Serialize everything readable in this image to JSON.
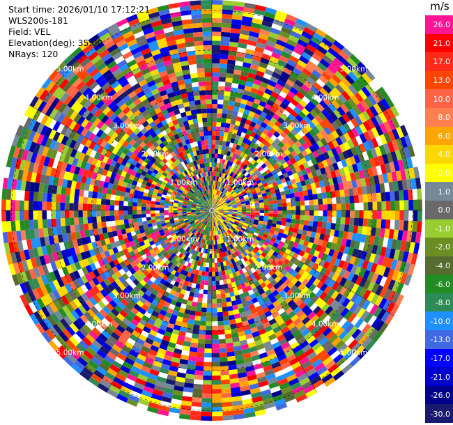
{
  "info": {
    "start_time": "Start time: 2026/01/10 17:12:21",
    "instrument": "WLS200s-181",
    "field": "Field: VEL",
    "elevation": "Elevation(deg): 35.00",
    "nrays": "NRays: 120"
  },
  "ppi": {
    "nrays": 120,
    "range_rings_km": [
      "1.00km",
      "2.00km",
      "3.00km",
      "4.00km",
      "5.00km"
    ],
    "dominant_colors": {
      "near_left": "#2e8b57",
      "near_right": "#ffd700"
    }
  },
  "colorbar": {
    "unit": "m/s",
    "bins": [
      {
        "label": "26.0",
        "color": "#ff1493"
      },
      {
        "label": "21.0",
        "color": "#ff0000"
      },
      {
        "label": "17.0",
        "color": "#ff2a1a"
      },
      {
        "label": "13.0",
        "color": "#ff4500"
      },
      {
        "label": "10.0",
        "color": "#ff6347"
      },
      {
        "label": "8.0",
        "color": "#ff7f50"
      },
      {
        "label": "6.0",
        "color": "#ffa500"
      },
      {
        "label": "4.0",
        "color": "#ffd700"
      },
      {
        "label": "2.0",
        "color": "#ffff00"
      },
      {
        "label": "1.0",
        "color": "#778899"
      },
      {
        "label": "0.0",
        "color": "#696969"
      },
      {
        "label": "-1.0",
        "color": "#9acd32"
      },
      {
        "label": "-2.0",
        "color": "#6b8e23"
      },
      {
        "label": "-4.0",
        "color": "#556b2f"
      },
      {
        "label": "-6.0",
        "color": "#228b22"
      },
      {
        "label": "-8.0",
        "color": "#2e8b57"
      },
      {
        "label": "-10.0",
        "color": "#1e90ff"
      },
      {
        "label": "-13.0",
        "color": "#4169e1"
      },
      {
        "label": "-17.0",
        "color": "#0000ff"
      },
      {
        "label": "-21.0",
        "color": "#0000cd"
      },
      {
        "label": "-26.0",
        "color": "#00008b"
      },
      {
        "label": "-30.0",
        "color": "#191970"
      }
    ]
  }
}
